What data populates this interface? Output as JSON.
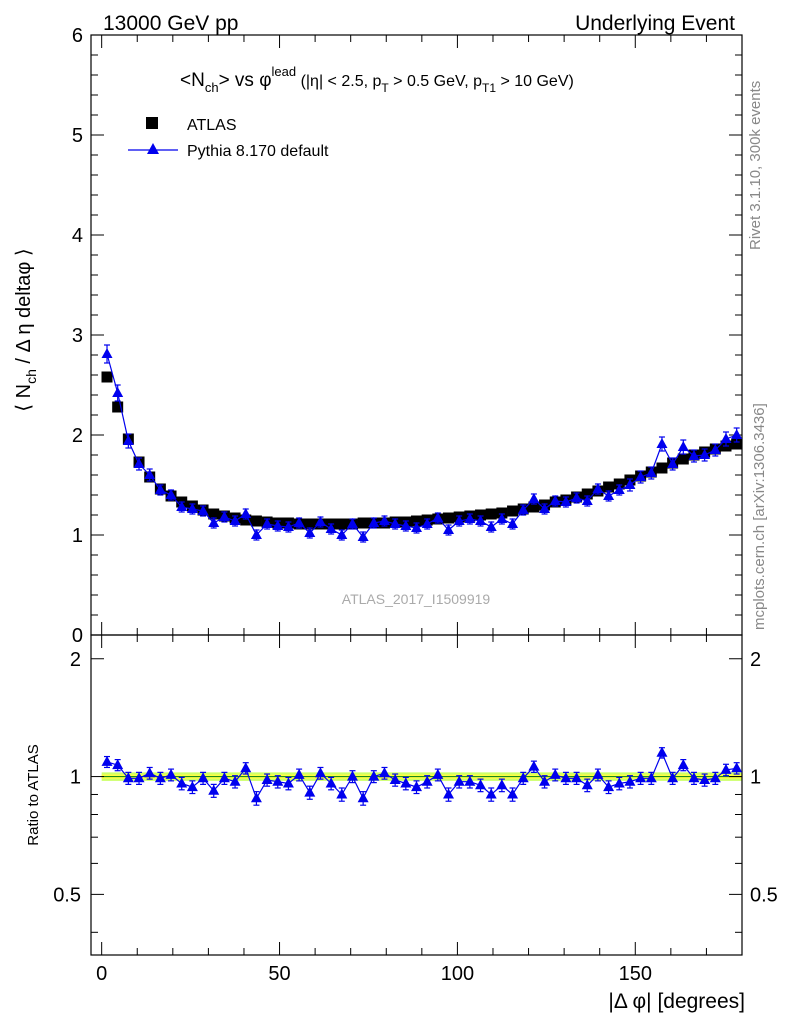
{
  "header": {
    "left": "13000 GeV pp",
    "right": "Underlying Event"
  },
  "side_labels": {
    "rivet": "Rivet 3.1.10,  300k events",
    "mcplots": "mcplots.cern.ch [arXiv:1306.3436]"
  },
  "watermark": "ATLAS_2017_I1509919",
  "colors": {
    "data": "#000000",
    "mc": "#0000ee",
    "band_outer": "#ccff66",
    "band_inner": "#ffff44",
    "ratio_ref": "#1a8a1a"
  },
  "chart_data": [
    {
      "type": "scatter",
      "panel": "main",
      "title": {
        "main": "<N",
        "sub1": "ch",
        "mid": "> vs ",
        "phi": "φ",
        "sup": "lead",
        "cuts1": " (|η| < 2.5, p",
        "sub2": "T",
        "cuts2": " > 0.5 GeV, p",
        "sub3": "T1",
        "cuts3": " > 10 GeV)"
      },
      "ylabel": {
        "pre": "⟨ N",
        "sub": "ch",
        "post": " / Δ η deltaφ ⟩"
      },
      "xlim": [
        -3,
        180
      ],
      "ylim": [
        0,
        6
      ],
      "yticks": [
        "0",
        "1",
        "2",
        "3",
        "4",
        "5",
        "6"
      ],
      "legend": {
        "position": "top-left",
        "entries": [
          "ATLAS",
          "Pythia 8.170 default"
        ]
      },
      "series": [
        {
          "name": "ATLAS",
          "marker": "square",
          "x": [
            1.5,
            4.5,
            7.5,
            10.5,
            13.5,
            16.5,
            19.5,
            22.5,
            25.5,
            28.5,
            31.5,
            34.5,
            37.5,
            40.5,
            43.5,
            46.5,
            49.5,
            52.5,
            55.5,
            58.5,
            61.5,
            64.5,
            67.5,
            70.5,
            73.5,
            76.5,
            79.5,
            82.5,
            85.5,
            88.5,
            91.5,
            94.5,
            97.5,
            100.5,
            103.5,
            106.5,
            109.5,
            112.5,
            115.5,
            118.5,
            121.5,
            124.5,
            127.5,
            130.5,
            133.5,
            136.5,
            139.5,
            142.5,
            145.5,
            148.5,
            151.5,
            154.5,
            157.5,
            160.5,
            163.5,
            166.5,
            169.5,
            172.5,
            175.5,
            178.5
          ],
          "y": [
            2.58,
            2.28,
            1.96,
            1.73,
            1.58,
            1.46,
            1.39,
            1.33,
            1.29,
            1.25,
            1.21,
            1.19,
            1.17,
            1.15,
            1.14,
            1.13,
            1.12,
            1.12,
            1.11,
            1.11,
            1.11,
            1.11,
            1.11,
            1.11,
            1.12,
            1.12,
            1.12,
            1.13,
            1.13,
            1.14,
            1.15,
            1.16,
            1.17,
            1.18,
            1.19,
            1.2,
            1.21,
            1.22,
            1.24,
            1.26,
            1.28,
            1.3,
            1.33,
            1.35,
            1.38,
            1.41,
            1.44,
            1.48,
            1.51,
            1.55,
            1.59,
            1.63,
            1.67,
            1.72,
            1.76,
            1.8,
            1.83,
            1.86,
            1.89,
            1.91
          ]
        },
        {
          "name": "Pythia 8.170 default",
          "marker": "triangle",
          "x": [
            1.5,
            4.5,
            7.5,
            10.5,
            13.5,
            16.5,
            19.5,
            22.5,
            25.5,
            28.5,
            31.5,
            34.5,
            37.5,
            40.5,
            43.5,
            46.5,
            49.5,
            52.5,
            55.5,
            58.5,
            61.5,
            64.5,
            67.5,
            70.5,
            73.5,
            76.5,
            79.5,
            82.5,
            85.5,
            88.5,
            91.5,
            94.5,
            97.5,
            100.5,
            103.5,
            106.5,
            109.5,
            112.5,
            115.5,
            118.5,
            121.5,
            124.5,
            127.5,
            130.5,
            133.5,
            136.5,
            139.5,
            142.5,
            145.5,
            148.5,
            151.5,
            154.5,
            157.5,
            160.5,
            163.5,
            166.5,
            169.5,
            172.5,
            175.5,
            178.5
          ],
          "y": [
            2.81,
            2.42,
            1.94,
            1.71,
            1.6,
            1.45,
            1.4,
            1.28,
            1.26,
            1.24,
            1.12,
            1.18,
            1.14,
            1.21,
            1.0,
            1.11,
            1.09,
            1.08,
            1.12,
            1.02,
            1.13,
            1.06,
            1.0,
            1.11,
            0.98,
            1.12,
            1.14,
            1.11,
            1.09,
            1.07,
            1.11,
            1.17,
            1.05,
            1.14,
            1.16,
            1.14,
            1.08,
            1.16,
            1.11,
            1.25,
            1.36,
            1.26,
            1.34,
            1.33,
            1.37,
            1.34,
            1.46,
            1.39,
            1.45,
            1.5,
            1.58,
            1.62,
            1.91,
            1.71,
            1.88,
            1.79,
            1.8,
            1.85,
            1.96,
            2.0
          ],
          "err": [
            0.09,
            0.08,
            0.07,
            0.06,
            0.06,
            0.05,
            0.05,
            0.05,
            0.05,
            0.05,
            0.05,
            0.05,
            0.05,
            0.05,
            0.05,
            0.05,
            0.05,
            0.05,
            0.05,
            0.05,
            0.05,
            0.05,
            0.05,
            0.05,
            0.05,
            0.05,
            0.05,
            0.05,
            0.05,
            0.05,
            0.05,
            0.05,
            0.05,
            0.05,
            0.05,
            0.05,
            0.05,
            0.05,
            0.05,
            0.05,
            0.05,
            0.05,
            0.05,
            0.05,
            0.05,
            0.05,
            0.05,
            0.05,
            0.05,
            0.06,
            0.06,
            0.06,
            0.07,
            0.06,
            0.07,
            0.06,
            0.06,
            0.06,
            0.07,
            0.07
          ]
        }
      ]
    },
    {
      "type": "scatter",
      "panel": "ratio",
      "ylabel": "Ratio to ATLAS",
      "xlabel": "|Δ φ| [degrees]",
      "xlim": [
        -3,
        180
      ],
      "ylim": [
        0.35,
        2.3
      ],
      "yticks": [
        "0.5",
        "1",
        "2"
      ],
      "xticks": [
        "0",
        "50",
        "100",
        "150"
      ],
      "series": [
        {
          "name": "Pythia 8.170 default",
          "marker": "triangle",
          "x": [
            1.5,
            4.5,
            7.5,
            10.5,
            13.5,
            16.5,
            19.5,
            22.5,
            25.5,
            28.5,
            31.5,
            34.5,
            37.5,
            40.5,
            43.5,
            46.5,
            49.5,
            52.5,
            55.5,
            58.5,
            61.5,
            64.5,
            67.5,
            70.5,
            73.5,
            76.5,
            79.5,
            82.5,
            85.5,
            88.5,
            91.5,
            94.5,
            97.5,
            100.5,
            103.5,
            106.5,
            109.5,
            112.5,
            115.5,
            118.5,
            121.5,
            124.5,
            127.5,
            130.5,
            133.5,
            136.5,
            139.5,
            142.5,
            145.5,
            148.5,
            151.5,
            154.5,
            157.5,
            160.5,
            163.5,
            166.5,
            169.5,
            172.5,
            175.5,
            178.5
          ],
          "y": [
            1.09,
            1.07,
            0.99,
            0.99,
            1.02,
            0.99,
            1.01,
            0.96,
            0.94,
            0.99,
            0.92,
            0.99,
            0.97,
            1.05,
            0.88,
            0.98,
            0.97,
            0.96,
            1.01,
            0.91,
            1.02,
            0.96,
            0.9,
            1.0,
            0.88,
            1.0,
            1.02,
            0.98,
            0.96,
            0.94,
            0.97,
            1.01,
            0.9,
            0.97,
            0.97,
            0.95,
            0.9,
            0.95,
            0.9,
            0.99,
            1.06,
            0.97,
            1.01,
            0.99,
            0.99,
            0.95,
            1.01,
            0.94,
            0.96,
            0.97,
            0.99,
            0.99,
            1.15,
            0.99,
            1.07,
            0.99,
            0.98,
            0.99,
            1.04,
            1.05
          ],
          "err": [
            0.035,
            0.035,
            0.035,
            0.035,
            0.035,
            0.035,
            0.035,
            0.035,
            0.035,
            0.035,
            0.035,
            0.035,
            0.035,
            0.035,
            0.035,
            0.035,
            0.035,
            0.035,
            0.035,
            0.035,
            0.035,
            0.035,
            0.035,
            0.035,
            0.035,
            0.035,
            0.035,
            0.035,
            0.035,
            0.035,
            0.035,
            0.035,
            0.035,
            0.035,
            0.035,
            0.035,
            0.035,
            0.035,
            0.035,
            0.035,
            0.035,
            0.035,
            0.035,
            0.035,
            0.035,
            0.035,
            0.035,
            0.035,
            0.035,
            0.035,
            0.035,
            0.035,
            0.035,
            0.035,
            0.035,
            0.035,
            0.035,
            0.035,
            0.035,
            0.035
          ]
        }
      ]
    }
  ]
}
